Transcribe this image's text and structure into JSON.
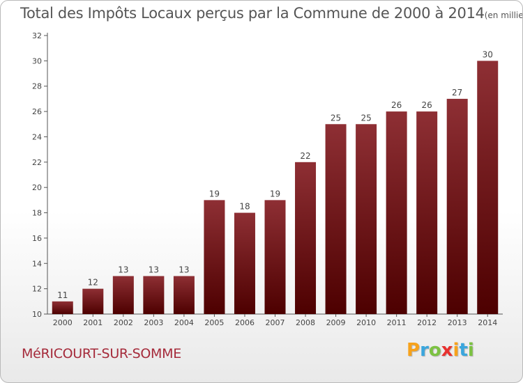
{
  "title": "Total des Impôts Locaux perçus par la Commune de 2000 à 2014",
  "unit_label": "(en milliers d'€)",
  "commune": "MéRICOURT-SUR-SOMME",
  "logo": {
    "letters": [
      "P",
      "r",
      "o",
      "x",
      "i",
      "t",
      "i"
    ],
    "colors": [
      "#f7a21b",
      "#3aa6dd",
      "#7cc242",
      "#e8312f",
      "#f7a21b",
      "#3aa6dd",
      "#7cc242"
    ]
  },
  "colors": {
    "bar_top": "#8e2f34",
    "bar_bottom": "#4d0000",
    "commune": "#a52a3a"
  },
  "chart_data": {
    "type": "bar",
    "categories": [
      "2000",
      "2001",
      "2002",
      "2003",
      "2004",
      "2005",
      "2006",
      "2007",
      "2008",
      "2009",
      "2010",
      "2011",
      "2012",
      "2013",
      "2014"
    ],
    "values": [
      11,
      12,
      13,
      13,
      13,
      19,
      18,
      19,
      22,
      25,
      25,
      26,
      26,
      27,
      30
    ],
    "ylim": [
      10,
      32
    ],
    "yticks": [
      10,
      12,
      14,
      16,
      18,
      20,
      22,
      24,
      26,
      28,
      30,
      32
    ],
    "grid": false,
    "data_labels": true
  }
}
